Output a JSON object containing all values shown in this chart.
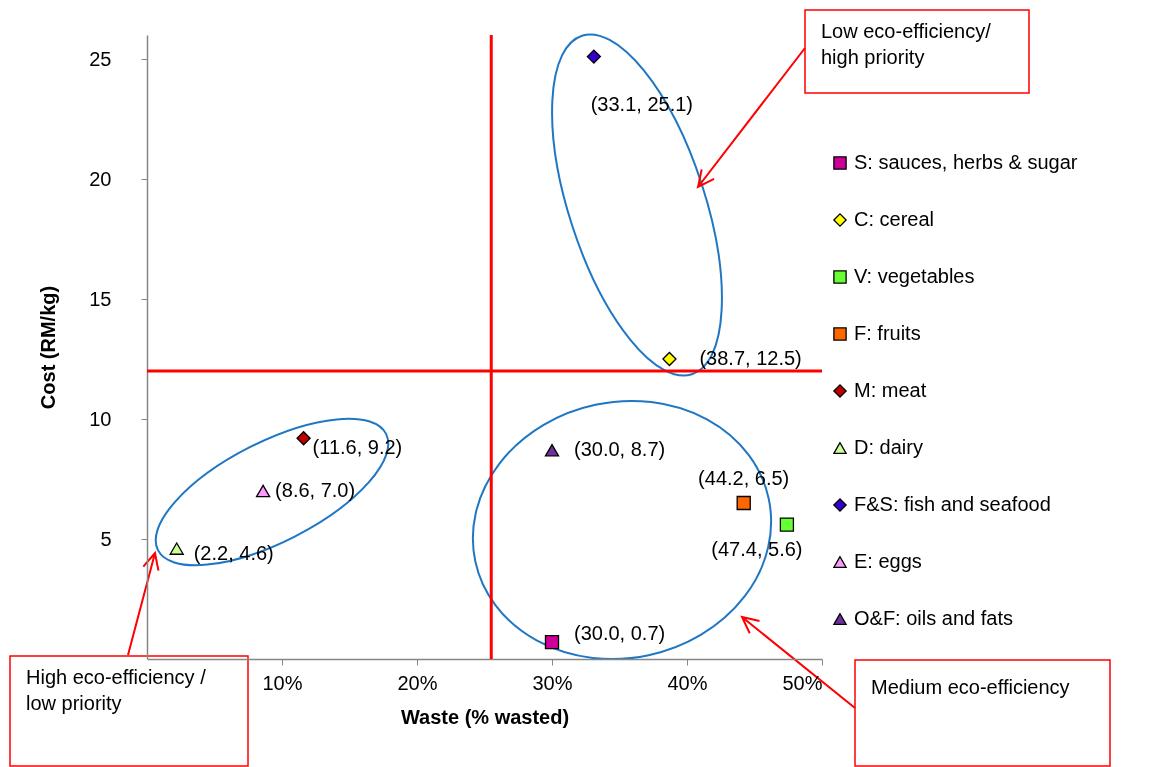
{
  "chart_data": {
    "type": "scatter",
    "xlabel": "Waste (% wasted)",
    "ylabel": "Cost (RM/kg)",
    "xlim": [
      0,
      50
    ],
    "xticks": [
      {
        "value": 10,
        "label": "10%"
      },
      {
        "value": 20,
        "label": "20%"
      },
      {
        "value": 30,
        "label": "30%"
      },
      {
        "value": 40,
        "label": "40%"
      },
      {
        "value": 50,
        "label": "50%"
      }
    ],
    "ylim": [
      0,
      26
    ],
    "yticks": [
      5,
      10,
      15,
      20,
      25
    ],
    "grid": false,
    "legend": "right",
    "series": [
      {
        "name": "S: sauces, herbs & sugar",
        "color": "#cc0099",
        "marker": "square",
        "x": [
          30.0
        ],
        "values": [
          0.7
        ],
        "value_labels": [
          "(30.0, 0.7)"
        ]
      },
      {
        "name": "C: cereal",
        "color": "#ffff00",
        "marker": "diamond",
        "x": [
          38.7
        ],
        "values": [
          12.5
        ],
        "value_labels": [
          "(38.7, 12.5)"
        ]
      },
      {
        "name": "V: vegetables",
        "color": "#66ff33",
        "marker": "square",
        "x": [
          47.4
        ],
        "values": [
          5.6
        ],
        "value_labels": [
          "(47.4, 5.6)"
        ]
      },
      {
        "name": "F: fruits",
        "color": "#ff6600",
        "marker": "square",
        "x": [
          44.2
        ],
        "values": [
          6.5
        ],
        "value_labels": [
          "(44.2, 6.5)"
        ]
      },
      {
        "name": "M: meat",
        "color": "#c00000",
        "marker": "diamond",
        "x": [
          11.6
        ],
        "values": [
          9.2
        ],
        "value_labels": [
          "(11.6, 9.2)"
        ]
      },
      {
        "name": "D: dairy",
        "color": "#ccff99",
        "marker": "triangle",
        "x": [
          2.2
        ],
        "values": [
          4.6
        ],
        "value_labels": [
          "(2.2, 4.6)"
        ]
      },
      {
        "name": "F&S: fish and seafood",
        "color": "#3300cc",
        "marker": "diamond",
        "x": [
          33.1
        ],
        "values": [
          25.1
        ],
        "value_labels": [
          "(33.1, 25.1)"
        ]
      },
      {
        "name": "E: eggs",
        "color": "#ff99ff",
        "marker": "triangle",
        "x": [
          8.6
        ],
        "values": [
          7.0
        ],
        "value_labels": [
          "(8.6, 7.0)"
        ]
      },
      {
        "name": "O&F: oils and fats",
        "color": "#7030a0",
        "marker": "triangle",
        "x": [
          30.0
        ],
        "values": [
          8.7
        ],
        "value_labels": [
          "(30.0, 8.7)"
        ]
      }
    ],
    "ref_lines": [
      {
        "axis": "x",
        "value": 25.5,
        "color": "#ff0000"
      },
      {
        "axis": "y",
        "value": 12,
        "color": "#ff0000"
      }
    ],
    "annotations": [
      "Low eco-efficiency/ high priority",
      "High eco-efficiency / low priority",
      "Medium eco-efficiency"
    ]
  }
}
